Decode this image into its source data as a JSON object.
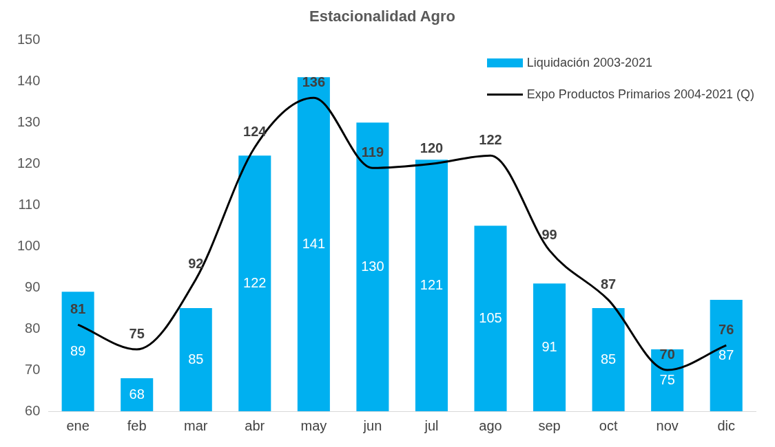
{
  "chart_data": {
    "type": "bar",
    "title": "Estacionalidad Agro",
    "categories": [
      "ene",
      "feb",
      "mar",
      "abr",
      "may",
      "jun",
      "jul",
      "ago",
      "sep",
      "oct",
      "nov",
      "dic"
    ],
    "series": [
      {
        "name": "Liquidación 2003-2021",
        "color": "#00b0f0",
        "values": [
          89,
          68,
          85,
          122,
          141,
          130,
          121,
          105,
          91,
          85,
          75,
          87
        ]
      },
      {
        "name": "Expo Productos Primarios 2004-2021 (Q)",
        "type": "line",
        "color": "#000000",
        "values": [
          81,
          75,
          92,
          124,
          136,
          119,
          120,
          122,
          99,
          87,
          70,
          76
        ]
      }
    ],
    "ylim": [
      60,
      150
    ],
    "yticks": [
      60,
      70,
      80,
      90,
      100,
      110,
      120,
      130,
      140,
      150
    ],
    "grid": false,
    "legend": "top right",
    "data_labels": true,
    "marker": "none"
  }
}
